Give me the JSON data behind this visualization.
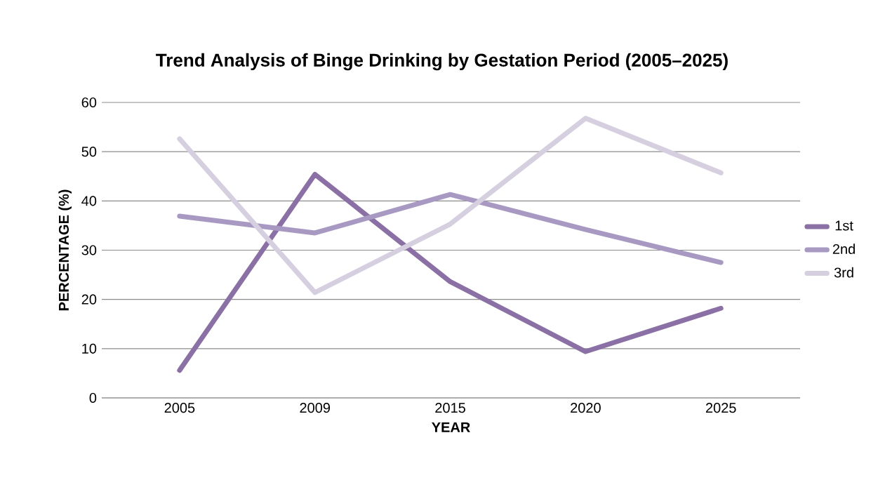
{
  "chart_data": {
    "type": "line",
    "title": "Trend Analysis of Binge Drinking by Gestation Period (2005–2025)",
    "xlabel": "YEAR",
    "ylabel": "PERCENTAGE (%)",
    "categories": [
      "2005",
      "2009",
      "2015",
      "2020",
      "2025"
    ],
    "series": [
      {
        "name": "1st",
        "color": "#8a70a5",
        "values": [
          5.6,
          45.4,
          23.6,
          9.4,
          18.2
        ]
      },
      {
        "name": "2nd",
        "color": "#a899c3",
        "values": [
          36.9,
          33.5,
          41.3,
          34.2,
          27.5
        ]
      },
      {
        "name": "3rd",
        "color": "#d5cfe0",
        "values": [
          52.6,
          21.4,
          35.3,
          56.8,
          45.7
        ]
      }
    ],
    "ylim": [
      0,
      60
    ],
    "yticks": [
      0,
      10,
      20,
      30,
      40,
      50,
      60
    ],
    "grid": "y",
    "legend": "right",
    "marker": "none",
    "line_style": "solid"
  }
}
